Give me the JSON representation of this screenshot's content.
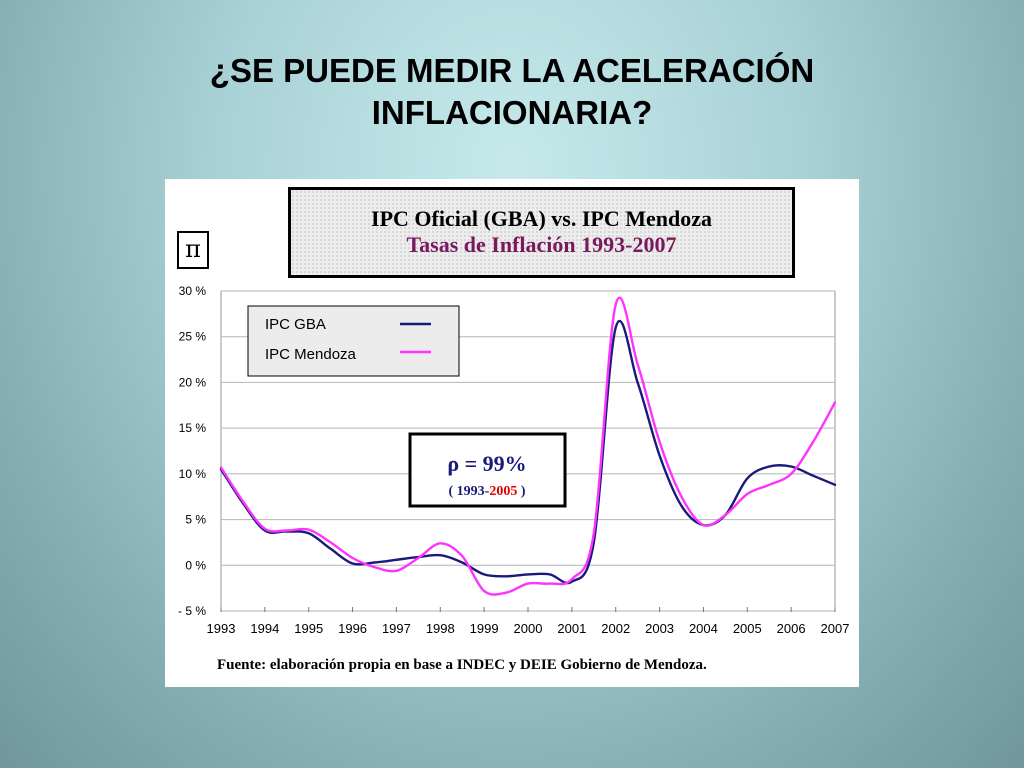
{
  "slide": {
    "title_line1": "¿SE PUEDE MEDIR LA ACELERACIÓN",
    "title_line2": "INFLACIONARIA?"
  },
  "panel": {
    "box_title": "IPC Oficial (GBA) vs. IPC Mendoza",
    "box_subtitle": "Tasas de Inflación 1993-2007",
    "pi_symbol": "π",
    "source": "Fuente: elaboración propia en base a INDEC y DEIE Gobierno de Mendoza.",
    "correlation_label": "ρ = 99%",
    "correlation_range_open": "( 1993-",
    "correlation_range_end": "2005",
    "correlation_range_close": " )"
  },
  "colors": {
    "gba": "#1a1a7a",
    "mendoza": "#ff33ff",
    "range_end": "#e00000",
    "title_sub": "#7a1a5e"
  },
  "chart_data": {
    "type": "line",
    "title": "IPC Oficial (GBA) vs. IPC Mendoza",
    "subtitle": "Tasas de Inflación 1993-2007",
    "xlabel": "",
    "ylabel": "π",
    "xlim": [
      1993,
      2007
    ],
    "ylim": [
      -5,
      30
    ],
    "yticks": [
      30,
      25,
      20,
      15,
      10,
      5,
      0,
      -5
    ],
    "ytick_labels": [
      "30 %",
      "25 %",
      "20 %",
      "15 %",
      "10 %",
      "5 %",
      "0 %",
      "- 5 %"
    ],
    "xtick_labels": [
      "1993",
      "1994",
      "1995",
      "1996",
      "1997",
      "1998",
      "1999",
      "2000",
      "2001",
      "2002",
      "2003",
      "2004",
      "2005",
      "2006",
      "2007"
    ],
    "grid": "horizontal",
    "legend_position": "top-left",
    "series": [
      {
        "name": "IPC GBA",
        "color": "#1a1a7a",
        "x": [
          1993,
          1993.5,
          1994,
          1994.5,
          1995,
          1995.5,
          1996,
          1996.5,
          1997,
          1997.5,
          1998,
          1998.5,
          1999,
          1999.5,
          2000,
          2000.5,
          2001,
          2001.5,
          2002,
          2002.5,
          2003,
          2003.5,
          2004,
          2004.5,
          2005,
          2005.5,
          2006,
          2006.5,
          2007
        ],
        "values": [
          10.5,
          6.8,
          3.8,
          3.7,
          3.5,
          1.8,
          0.2,
          0.3,
          0.6,
          0.9,
          1.1,
          0.3,
          -1.0,
          -1.2,
          -1.0,
          -1.0,
          -1.8,
          2.5,
          26.0,
          20.0,
          12.0,
          6.5,
          4.4,
          5.5,
          9.5,
          10.8,
          10.8,
          9.8,
          8.8
        ]
      },
      {
        "name": "IPC Mendoza",
        "color": "#ff33ff",
        "x": [
          1993,
          1993.5,
          1994,
          1994.5,
          1995,
          1995.5,
          1996,
          1996.5,
          1997,
          1997.5,
          1998,
          1998.5,
          1999,
          1999.5,
          2000,
          2000.5,
          2001,
          2001.5,
          2002,
          2002.5,
          2003,
          2003.5,
          2004,
          2004.5,
          2005,
          2005.5,
          2006,
          2006.5,
          2007
        ],
        "values": [
          10.7,
          7.0,
          4.0,
          3.8,
          3.9,
          2.5,
          0.8,
          -0.2,
          -0.6,
          0.8,
          2.4,
          1.0,
          -2.8,
          -3.0,
          -2.0,
          -2.0,
          -1.5,
          3.5,
          28.5,
          22.0,
          13.5,
          7.5,
          4.4,
          5.5,
          7.8,
          8.8,
          10.0,
          13.5,
          17.8
        ]
      }
    ],
    "annotations": [
      {
        "text": "ρ = 99%"
      },
      {
        "text": "( 1993-2005 )"
      }
    ]
  }
}
